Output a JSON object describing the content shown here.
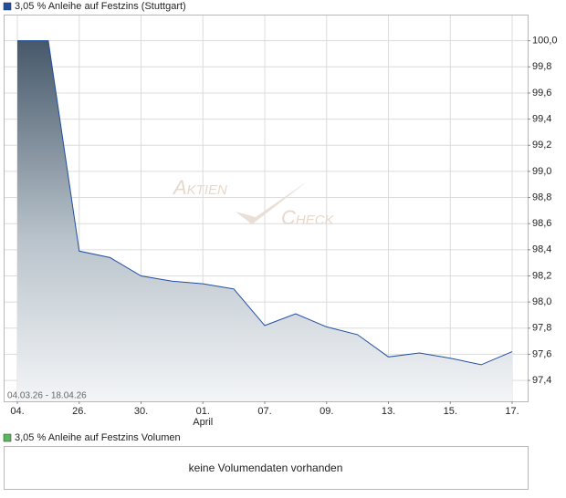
{
  "chart_data": {
    "type": "area",
    "series": [
      {
        "name": "3,05 % Anleihe auf Festzins (Stuttgart)",
        "color": "#1f4fa0",
        "values": [
          100.0,
          100.0,
          98.39,
          98.34,
          98.2,
          98.16,
          98.14,
          98.1,
          97.82,
          97.91,
          97.81,
          97.75,
          97.58,
          97.61,
          97.57,
          97.52,
          97.62
        ]
      }
    ],
    "categories": [
      "04.",
      null,
      "26.",
      null,
      "30.",
      null,
      "01.",
      null,
      "07.",
      null,
      "09.",
      null,
      "13.",
      null,
      "15.",
      null,
      "17."
    ],
    "x_sublabels": [
      null,
      null,
      null,
      null,
      null,
      null,
      "April",
      null,
      null,
      null,
      null,
      null,
      null,
      null,
      null,
      null,
      null
    ],
    "ylim": [
      97.24,
      100.2
    ],
    "yticks": [
      {
        "value": 97.4,
        "label": "97,4"
      },
      {
        "value": 97.6,
        "label": "97,6"
      },
      {
        "value": 97.8,
        "label": "97,8"
      },
      {
        "value": 98.0,
        "label": "98,0"
      },
      {
        "value": 98.2,
        "label": "98,2"
      },
      {
        "value": 98.4,
        "label": "98,4"
      },
      {
        "value": 98.6,
        "label": "98,6"
      },
      {
        "value": 98.8,
        "label": "98,8"
      },
      {
        "value": 99.0,
        "label": "99,0"
      },
      {
        "value": 99.2,
        "label": "99,2"
      },
      {
        "value": 99.4,
        "label": "99,4"
      },
      {
        "value": 99.6,
        "label": "99,6"
      },
      {
        "value": 99.8,
        "label": "99,8"
      },
      {
        "value": 100.0,
        "label": "100,0"
      }
    ],
    "grid": true,
    "date_range": "04.03.26 - 18.04.26",
    "watermark": [
      "Aktien",
      "Check"
    ]
  },
  "volume_panel": {
    "legend": "3,05 % Anleihe auf Festzins Volumen",
    "legend_color": "#5cb85c",
    "message": "keine Volumendaten vorhanden"
  }
}
